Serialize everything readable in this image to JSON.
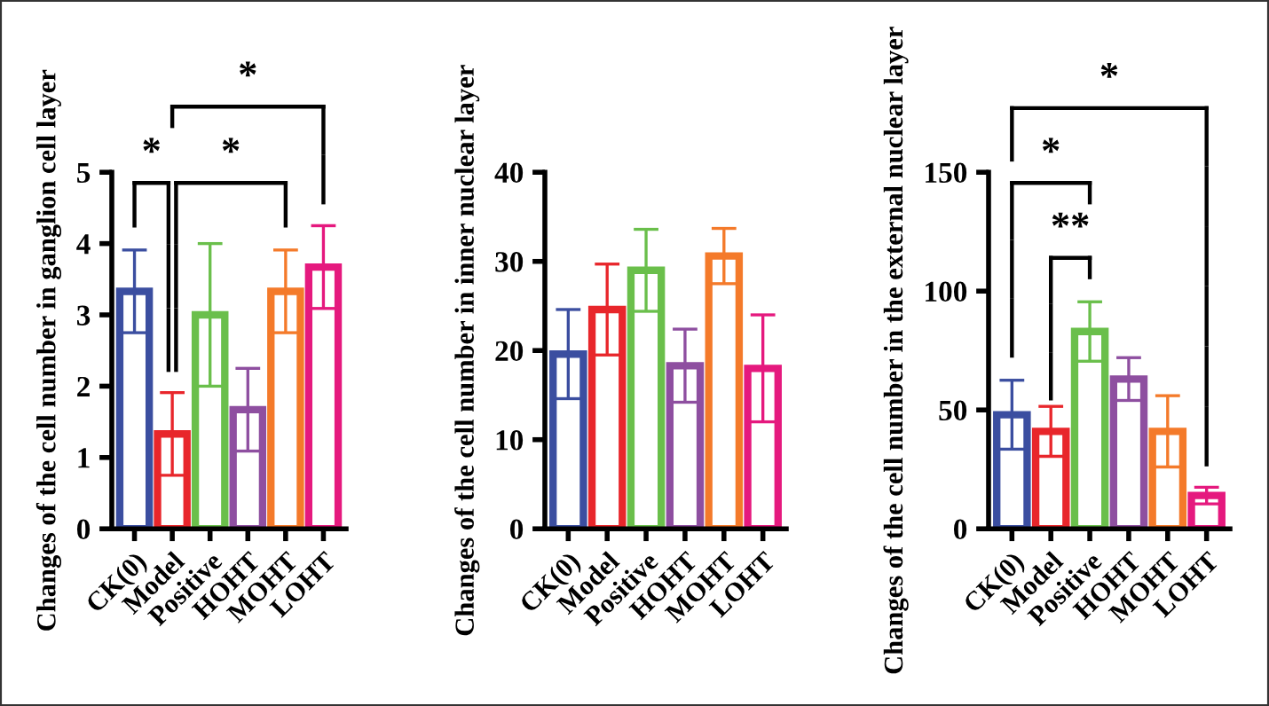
{
  "chart_data": [
    {
      "type": "bar",
      "ylabel": "Changes of the cell number in ganglion cell layer",
      "categories": [
        "CK(0)",
        "Model",
        "Positive",
        "HOHT",
        "MOHT",
        "LOHT"
      ],
      "values": [
        3.33,
        1.33,
        3.0,
        1.67,
        3.33,
        3.67
      ],
      "errors": [
        0.58,
        0.58,
        1.0,
        0.58,
        0.58,
        0.58
      ],
      "colors": [
        "#3b4ea0",
        "#e8262b",
        "#6abf4b",
        "#8e4fa0",
        "#f47a2a",
        "#e5197e"
      ],
      "ylim": [
        0,
        5
      ],
      "yticks": [
        0,
        1,
        2,
        3,
        4,
        5
      ],
      "grid": false,
      "annotations": [
        "*",
        "*",
        "*"
      ]
    },
    {
      "type": "bar",
      "ylabel": "Changes of the cell number in inner nuclear layer",
      "categories": [
        "CK(0)",
        "Model",
        "Positive",
        "HOHT",
        "MOHT",
        "LOHT"
      ],
      "values": [
        19.6,
        24.6,
        29.0,
        18.3,
        30.6,
        18.0
      ],
      "errors": [
        5.0,
        5.1,
        4.6,
        4.1,
        3.1,
        6.0
      ],
      "colors": [
        "#3b4ea0",
        "#e8262b",
        "#6abf4b",
        "#8e4fa0",
        "#f47a2a",
        "#e5197e"
      ],
      "ylim": [
        0,
        40
      ],
      "yticks": [
        0,
        10,
        20,
        30,
        40
      ],
      "grid": false
    },
    {
      "type": "bar",
      "ylabel": "Changes of the cell number in the external nuclear layer",
      "categories": [
        "CK(0)",
        "Model",
        "Positive",
        "HOHT",
        "MOHT",
        "LOHT"
      ],
      "values": [
        48,
        41,
        83,
        63,
        41,
        14
      ],
      "errors": [
        14.5,
        10.5,
        12.5,
        9,
        15,
        3.5
      ],
      "colors": [
        "#3b4ea0",
        "#e8262b",
        "#6abf4b",
        "#8e4fa0",
        "#f47a2a",
        "#e5197e"
      ],
      "ylim": [
        0,
        150
      ],
      "yticks": [
        0,
        50,
        100,
        150
      ],
      "grid": false,
      "annotations": [
        "*",
        "*",
        "**"
      ]
    }
  ]
}
